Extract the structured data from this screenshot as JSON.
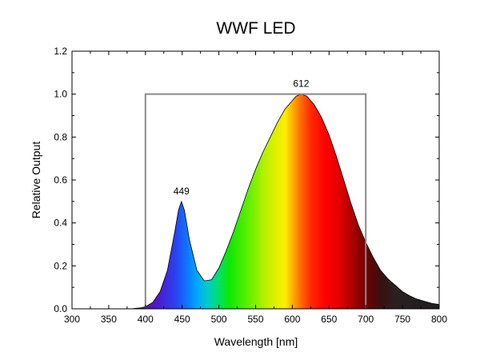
{
  "chart_data": {
    "type": "area",
    "title": "WWF LED",
    "xlabel": "Wavelength [nm]",
    "ylabel": "Relative Output",
    "xlim": [
      300,
      800
    ],
    "ylim": [
      0,
      1.2
    ],
    "xticks": [
      300,
      350,
      400,
      450,
      500,
      550,
      600,
      650,
      700,
      750,
      800
    ],
    "yticks": [
      0.0,
      0.2,
      0.4,
      0.6,
      0.8,
      1.0,
      1.2
    ],
    "ytick_labels": [
      "0.0",
      "0.2",
      "0.4",
      "0.6",
      "0.8",
      "1.0",
      "1.2"
    ],
    "grid": false,
    "series": [
      {
        "fill": "visible-spectrum",
        "x": [
          300,
          380,
          395,
          400,
          410,
          420,
          430,
          440,
          445,
          449,
          453,
          460,
          470,
          480,
          490,
          500,
          510,
          520,
          530,
          540,
          550,
          560,
          570,
          580,
          590,
          600,
          605,
          612,
          620,
          630,
          640,
          650,
          660,
          670,
          680,
          690,
          700,
          710,
          720,
          730,
          740,
          750,
          760,
          770,
          780,
          790,
          800
        ],
        "y": [
          0,
          0,
          0.005,
          0.01,
          0.03,
          0.08,
          0.18,
          0.36,
          0.46,
          0.5,
          0.46,
          0.32,
          0.18,
          0.13,
          0.135,
          0.19,
          0.27,
          0.36,
          0.46,
          0.56,
          0.65,
          0.73,
          0.8,
          0.87,
          0.93,
          0.97,
          0.99,
          1.0,
          0.99,
          0.95,
          0.89,
          0.81,
          0.71,
          0.6,
          0.49,
          0.39,
          0.31,
          0.24,
          0.18,
          0.14,
          0.11,
          0.08,
          0.06,
          0.045,
          0.035,
          0.025,
          0.02
        ]
      },
      {
        "style": "outline",
        "color": "#8a8a8a",
        "x": [
          400,
          400,
          700,
          700
        ],
        "y": [
          0,
          1.0,
          1.0,
          0
        ]
      }
    ],
    "annotations": [
      {
        "text": "449",
        "x": 449,
        "y": 0.5
      },
      {
        "text": "612",
        "x": 612,
        "y": 1.0
      }
    ]
  }
}
